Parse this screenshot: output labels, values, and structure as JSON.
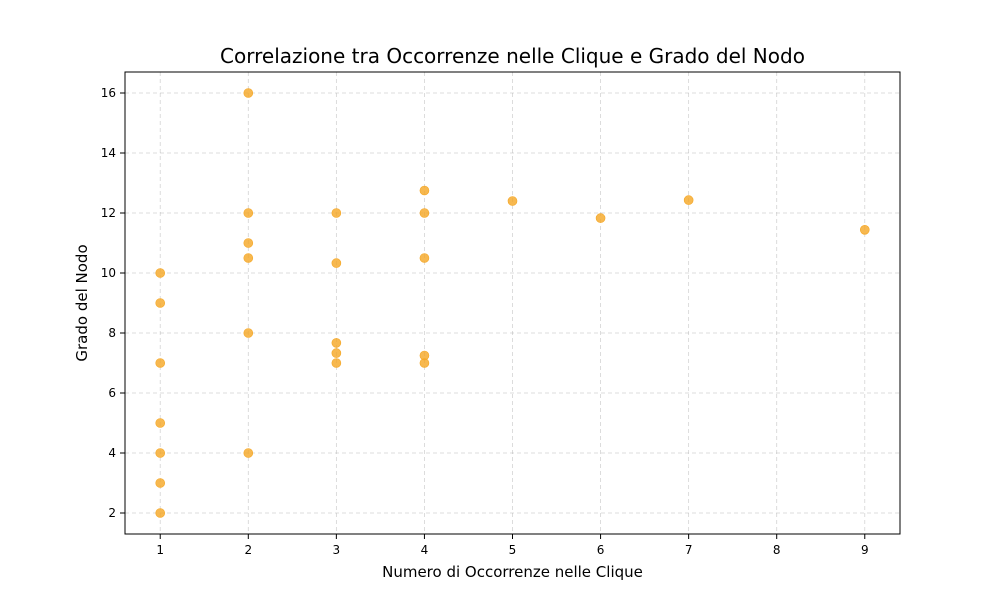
{
  "chart_data": {
    "type": "scatter",
    "title": "Correlazione tra Occorrenze nelle Clique e Grado del Nodo",
    "xlabel": "Numero di Occorrenze nelle Clique",
    "ylabel": "Grado del Nodo",
    "xlim": [
      0.6,
      9.4
    ],
    "ylim": [
      1.3,
      16.7
    ],
    "xticks": [
      1,
      2,
      3,
      4,
      5,
      6,
      7,
      8,
      9
    ],
    "yticks": [
      2,
      4,
      6,
      8,
      10,
      12,
      14,
      16
    ],
    "grid": true,
    "marker_color": "#f5a623",
    "points": [
      {
        "x": 1,
        "y": 2
      },
      {
        "x": 1,
        "y": 3
      },
      {
        "x": 1,
        "y": 4
      },
      {
        "x": 1,
        "y": 5
      },
      {
        "x": 1,
        "y": 7
      },
      {
        "x": 1,
        "y": 9
      },
      {
        "x": 1,
        "y": 10
      },
      {
        "x": 2,
        "y": 4
      },
      {
        "x": 2,
        "y": 8
      },
      {
        "x": 2,
        "y": 10.5
      },
      {
        "x": 2,
        "y": 11
      },
      {
        "x": 2,
        "y": 12
      },
      {
        "x": 2,
        "y": 16
      },
      {
        "x": 3,
        "y": 7
      },
      {
        "x": 3,
        "y": 7.33
      },
      {
        "x": 3,
        "y": 7.67
      },
      {
        "x": 3,
        "y": 10.33
      },
      {
        "x": 3,
        "y": 12
      },
      {
        "x": 4,
        "y": 7
      },
      {
        "x": 4,
        "y": 7.25
      },
      {
        "x": 4,
        "y": 10.5
      },
      {
        "x": 4,
        "y": 12
      },
      {
        "x": 4,
        "y": 12.75
      },
      {
        "x": 5,
        "y": 12.4
      },
      {
        "x": 6,
        "y": 11.83
      },
      {
        "x": 7,
        "y": 12.43
      },
      {
        "x": 9,
        "y": 11.44
      }
    ]
  }
}
